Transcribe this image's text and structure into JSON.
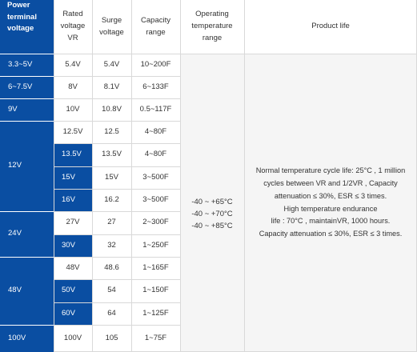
{
  "headers": {
    "terminal": [
      "Power",
      "terminal",
      "voltage"
    ],
    "rated": [
      "Rated",
      "voltage",
      "VR"
    ],
    "surge": [
      "Surge",
      "voltage"
    ],
    "capacity": [
      "Capacity",
      "range"
    ],
    "temp": [
      "Operating",
      "temperature",
      "range"
    ],
    "life": [
      "Product life"
    ]
  },
  "groups": [
    {
      "voltage": "3.3~5V"
    },
    {
      "voltage": "6~7.5V"
    },
    {
      "voltage": "9V"
    },
    {
      "voltage": "12V"
    },
    {
      "voltage": "24V"
    },
    {
      "voltage": "48V"
    },
    {
      "voltage": "100V"
    }
  ],
  "rows": [
    {
      "rated": "5.4V",
      "surge": "5.4V",
      "capacity": "10~200F"
    },
    {
      "rated": "8V",
      "surge": "8.1V",
      "capacity": "6~133F"
    },
    {
      "rated": "10V",
      "surge": "10.8V",
      "capacity": "0.5~117F"
    },
    {
      "rated": "12.5V",
      "surge": "12.5",
      "capacity": "4~80F"
    },
    {
      "rated": "13.5V",
      "surge": "13.5V",
      "capacity": "4~80F"
    },
    {
      "rated": "15V",
      "surge": "15V",
      "capacity": "3~500F"
    },
    {
      "rated": "16V",
      "surge": "16.2",
      "capacity": "3~500F"
    },
    {
      "rated": "27V",
      "surge": "27",
      "capacity": "2~300F"
    },
    {
      "rated": "30V",
      "surge": "32",
      "capacity": "1~250F"
    },
    {
      "rated": "48V",
      "surge": "48.6",
      "capacity": "1~165F"
    },
    {
      "rated": "50V",
      "surge": "54",
      "capacity": "1~150F"
    },
    {
      "rated": "60V",
      "surge": "64",
      "capacity": "1~125F"
    },
    {
      "rated": "100V",
      "surge": "105",
      "capacity": "1~75F"
    }
  ],
  "temperature_ranges": [
    "-40 ~ +65°C",
    "-40 ~ +70°C",
    "-40 ~ +85°C"
  ],
  "product_life": [
    "Normal temperature cycle life: 25°C , 1 million",
    "cycles between VR and 1/2VR , Capacity",
    "attenuation ≤ 30%, ESR ≤ 3 times.",
    "High temperature endurance",
    "life : 70°C , maintainVR, 1000 hours.",
    "Capacity attenuation ≤ 30%, ESR ≤ 3 times."
  ],
  "colors": {
    "header_blue": "#0a4ea2",
    "merged_bg": "#f5f5f5",
    "grid_line": "#d9d9d9"
  }
}
